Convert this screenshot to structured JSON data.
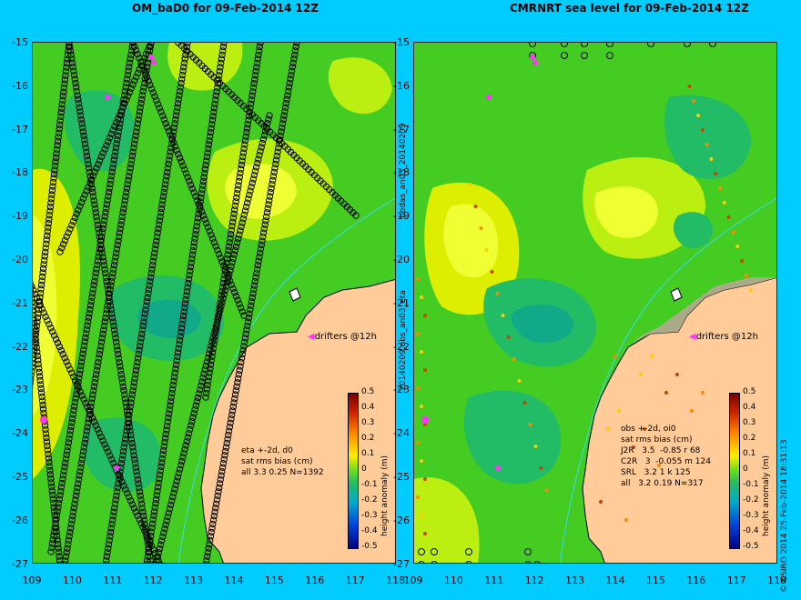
{
  "titles": {
    "left": "OM_baD0 for 09-Feb-2014 12Z",
    "right": "CMRNRT sea level  for 09-Feb-2014 12Z"
  },
  "y_ticks": [
    "-15",
    "-16",
    "-17",
    "-18",
    "-19",
    "-20",
    "-21",
    "-22",
    "-23",
    "-24",
    "-25",
    "-26",
    "-27"
  ],
  "x_ticks": [
    "109",
    "110",
    "111",
    "112",
    "113",
    "114",
    "115",
    "116",
    "117",
    "118"
  ],
  "left_info": [
    "eta +-2d, d0",
    "sat rms bias (cm)",
    "all 3.3 0.25 N=1392"
  ],
  "right_info": [
    "obs +-2d, oi0",
    "sat rms bias (cm)",
    "J2R   3.5  -0.85 r 68",
    "C2R   3  -0.055 m 124",
    "SRL   3.2 1 k 125",
    "all   3.2 0.19 N=317"
  ],
  "drifters_label": "drifters @12h",
  "side_label_top": "bodas_an03_20140209",
  "side_label_bottom": "20140209.obs_an03_eta",
  "colorbar": {
    "label": "height anomaly (m)",
    "ticks": [
      "0.5",
      "0.4",
      "0.3",
      "0.2",
      "0.1",
      "0",
      "-0.1",
      "-0.2",
      "-0.3",
      "-0.4",
      "-0.5"
    ]
  },
  "copyright": "© CSIRO 2014  25-Feb-2014 18:31:13",
  "colors": {
    "background": "#00ccff",
    "land": "#ffcc99",
    "anomaly_green": "#44cc22",
    "anomaly_yellow": "#ddee00",
    "anomaly_teal": "#22bb66",
    "drifter": "#ff33ff"
  }
}
